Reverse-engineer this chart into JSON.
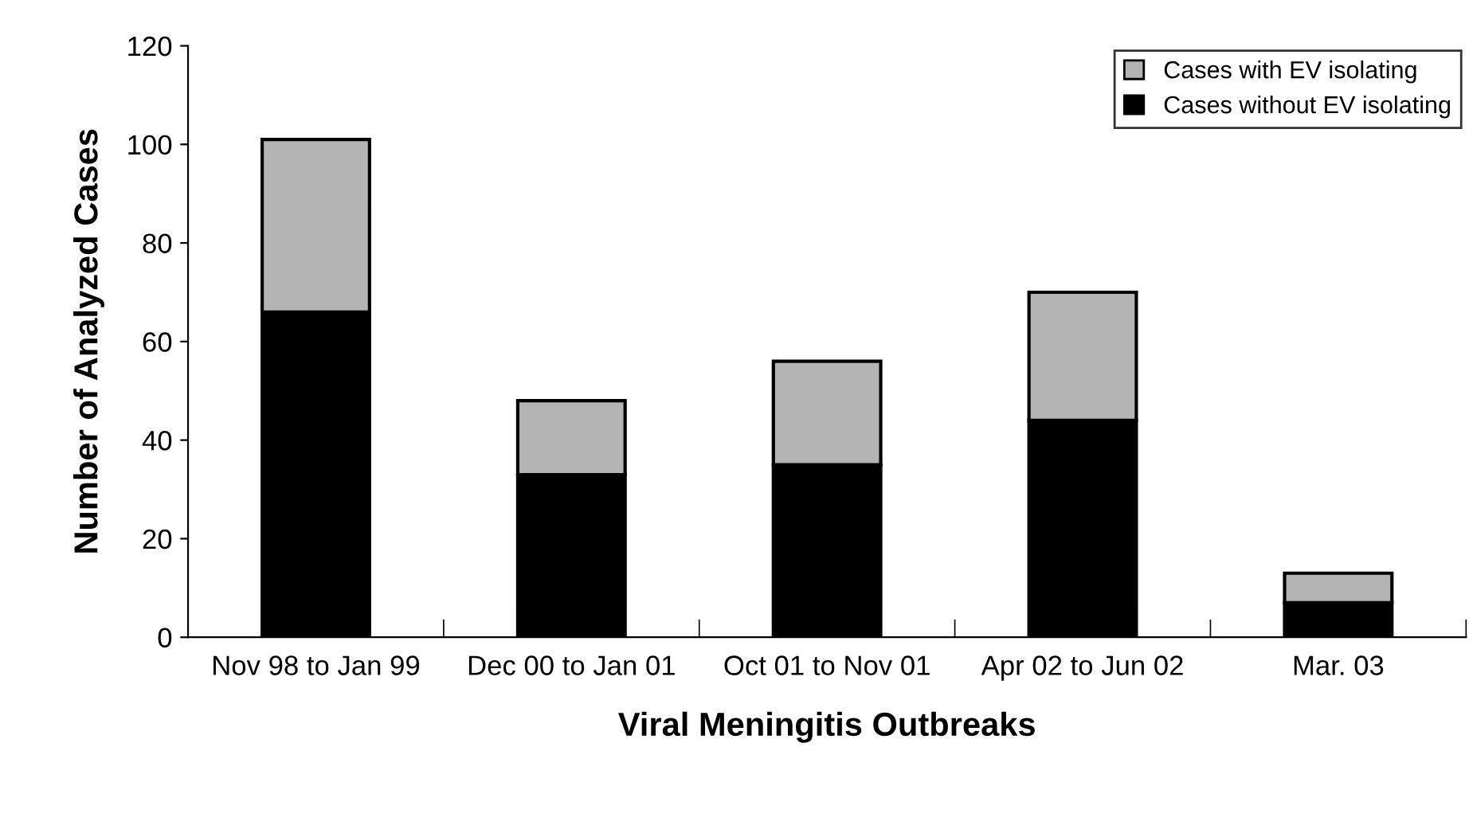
{
  "chart_data": {
    "type": "bar",
    "stacked": true,
    "xlabel": "Viral Meningitis Outbreaks",
    "ylabel": "Number of Analyzed Cases",
    "categories": [
      "Nov 98 to Jan 99",
      "Dec 00 to Jan 01",
      "Oct 01 to Nov 01",
      "Apr 02 to Jun 02",
      "Mar. 03"
    ],
    "series": [
      {
        "name": "Cases without EV isolating",
        "color": "#000000",
        "values": [
          66,
          33,
          35,
          44,
          7
        ]
      },
      {
        "name": "Cases with EV isolating",
        "color": "#b4b4b4",
        "values": [
          35,
          15,
          21,
          26,
          6
        ]
      }
    ],
    "ylim": [
      0,
      120
    ],
    "yticks": [
      0,
      20,
      40,
      60,
      80,
      100,
      120
    ],
    "grid": false,
    "legend": "top right"
  }
}
